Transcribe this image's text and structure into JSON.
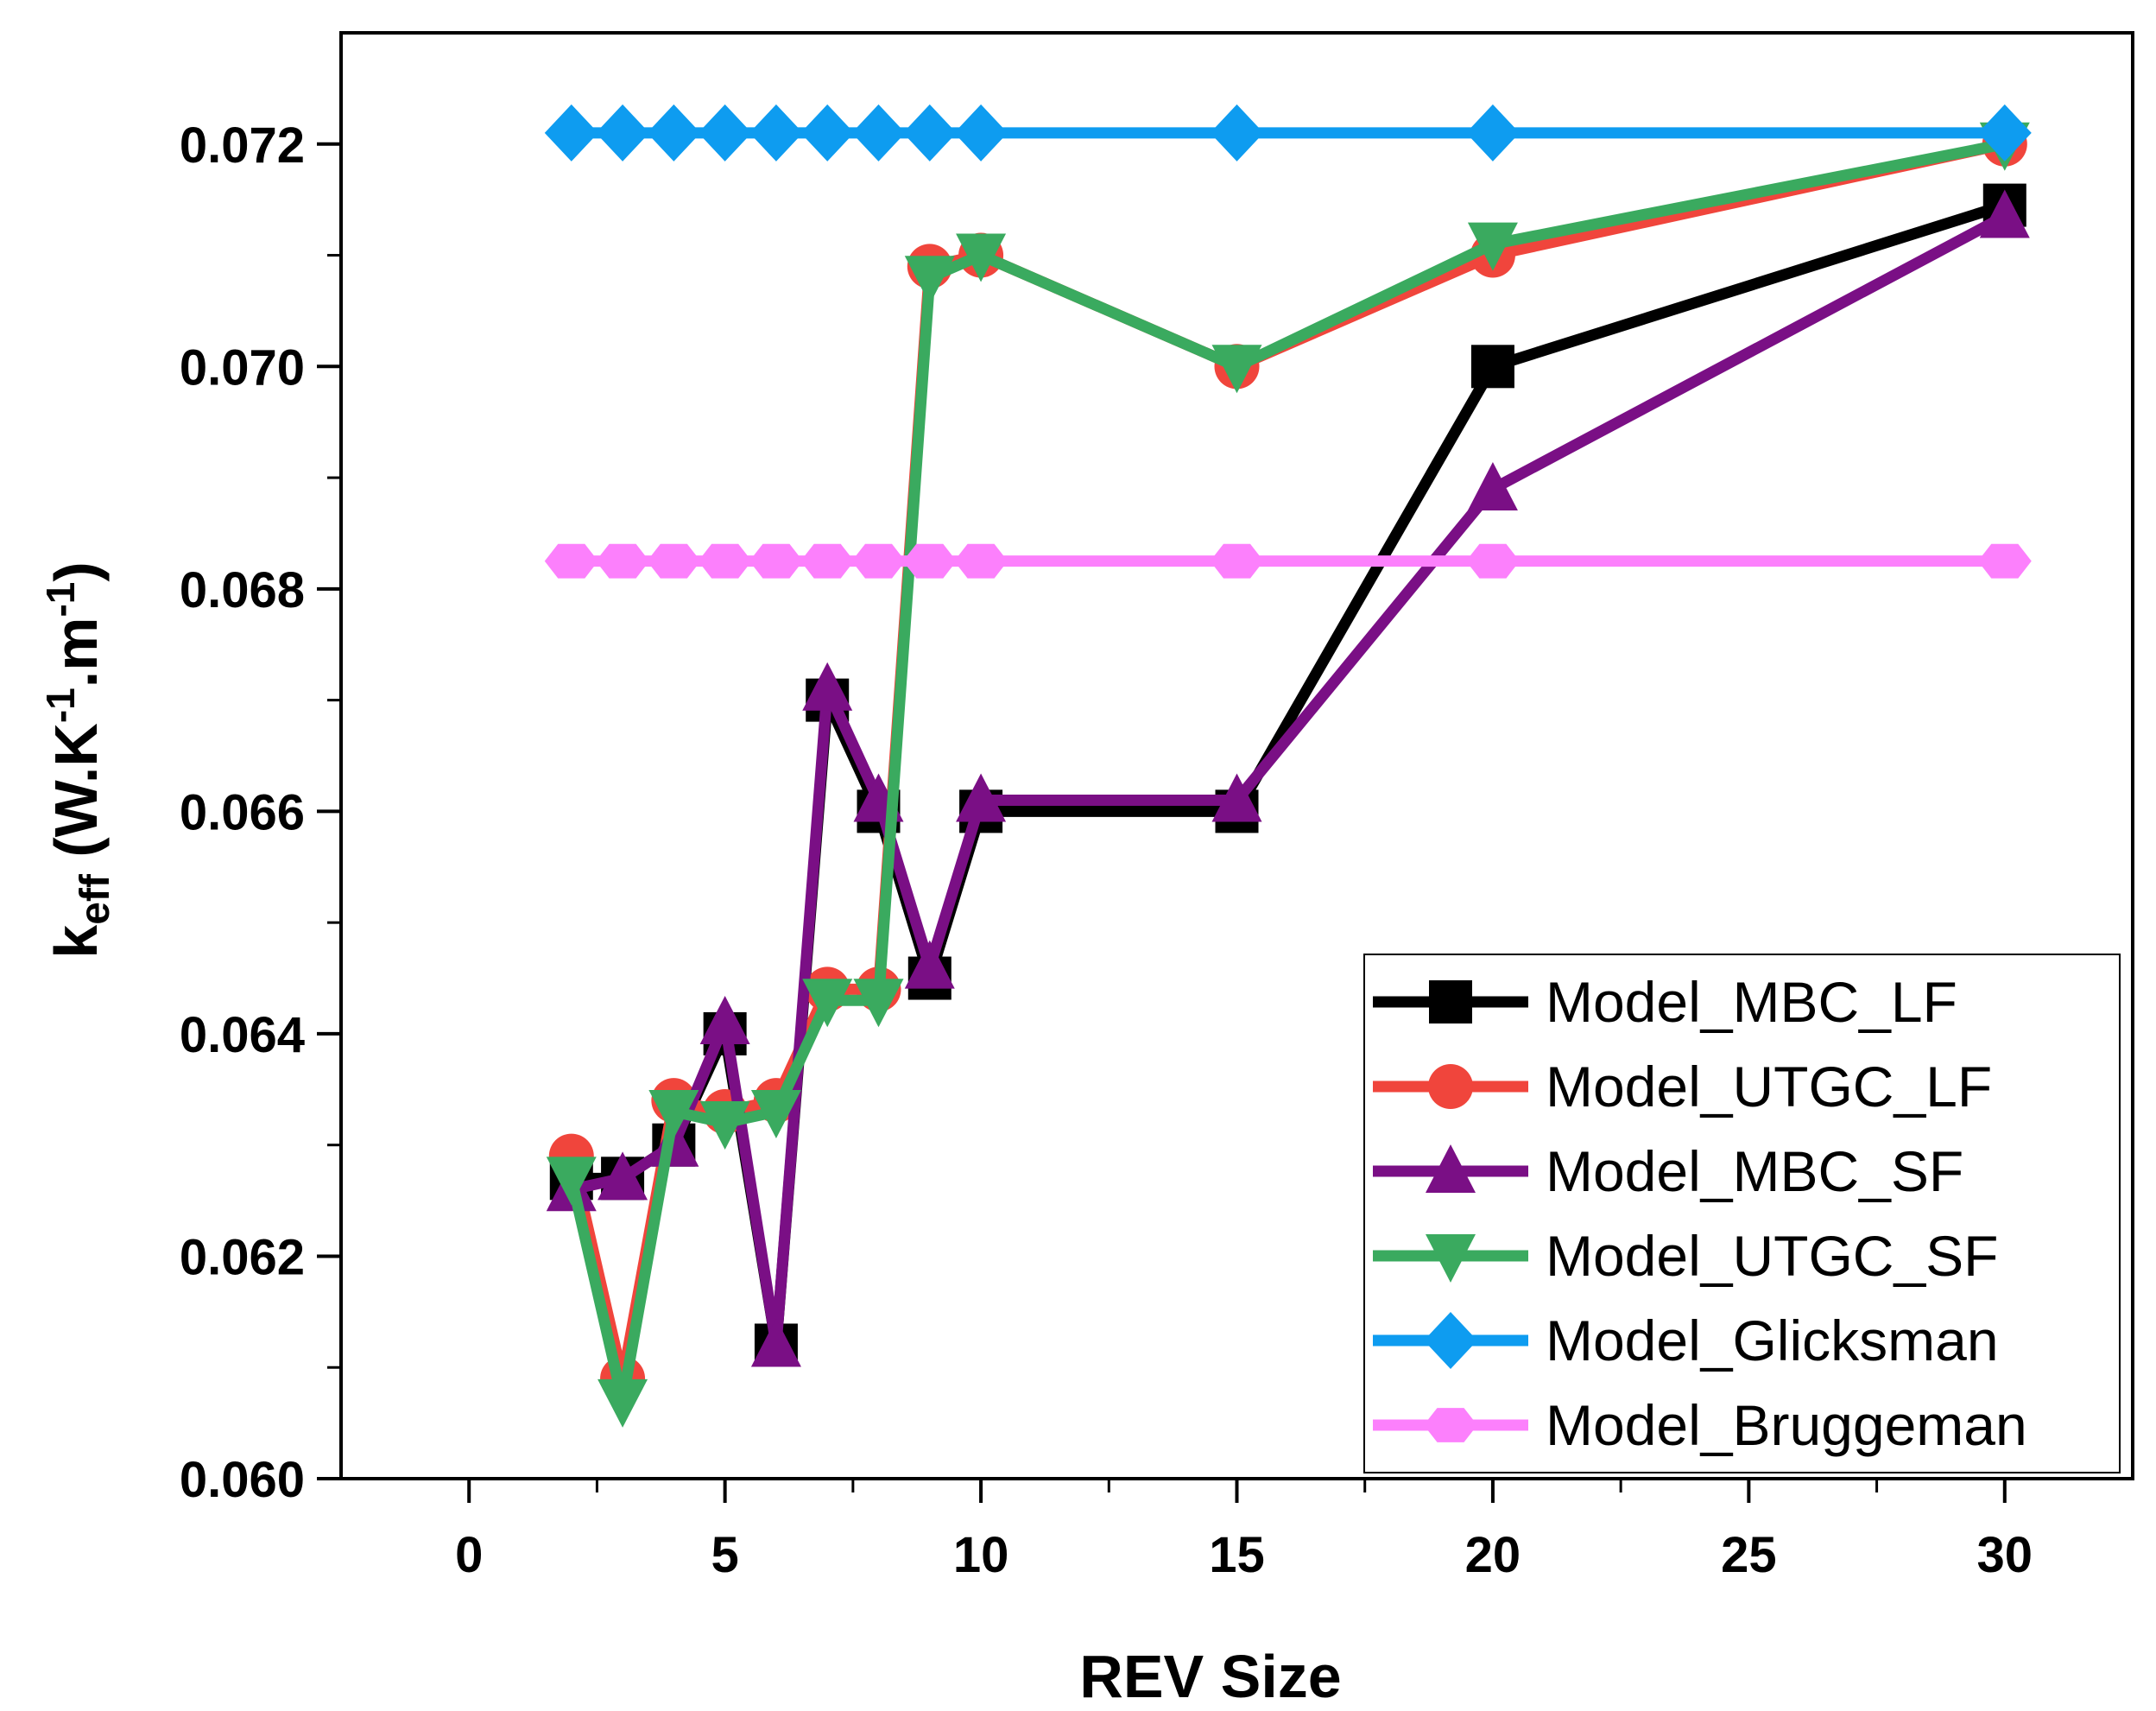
{
  "chart_data": {
    "type": "line",
    "title": "",
    "xlabel": "REV Size",
    "ylabel": {
      "main": "k",
      "sub": "eff",
      "unit_prefix": " (W.K",
      "exp1": "-1",
      "unit_mid": ".m",
      "exp2": "-1",
      "unit_suffix": ")"
    },
    "xlim": [
      -2.5,
      32.5
    ],
    "ylim": [
      0.06,
      0.073
    ],
    "xticks": [
      0,
      5,
      10,
      15,
      20,
      25,
      30
    ],
    "xtick_labels": [
      "0",
      "5",
      "10",
      "15",
      "20",
      "25",
      "30"
    ],
    "yticks": [
      0.06,
      0.062,
      0.064,
      0.066,
      0.068,
      0.07,
      0.072
    ],
    "ytick_labels": [
      "0.060",
      "0.062",
      "0.064",
      "0.066",
      "0.068",
      "0.070",
      "0.072"
    ],
    "legend_position": "bottom-right",
    "x": [
      2,
      3,
      4,
      5,
      6,
      7,
      8,
      9,
      10,
      15,
      20,
      30
    ],
    "series": [
      {
        "name": "Model_MBC_LF",
        "color": "#000000",
        "marker": "square",
        "values": [
          0.0627,
          0.0627,
          0.063,
          0.064,
          0.0612,
          0.067,
          0.066,
          0.0645,
          0.066,
          0.066,
          0.07,
          0.07145
        ]
      },
      {
        "name": "Model_UTGC_LF",
        "color": "#f0453c",
        "marker": "circle",
        "values": [
          0.0629,
          0.0609,
          0.0634,
          0.0633,
          0.0634,
          0.0644,
          0.0644,
          0.0709,
          0.071,
          0.07,
          0.071,
          0.072
        ]
      },
      {
        "name": "Model_MBC_SF",
        "color": "#7a0f85",
        "marker": "triangle-up",
        "values": [
          0.0626,
          0.0627,
          0.063,
          0.0641,
          0.0612,
          0.0671,
          0.0661,
          0.0646,
          0.0661,
          0.0661,
          0.0689,
          0.07135
        ]
      },
      {
        "name": "Model_UTGC_SF",
        "color": "#3aaa5f",
        "marker": "triangle-down",
        "values": [
          0.0627,
          0.0607,
          0.0633,
          0.0632,
          0.0633,
          0.0643,
          0.0643,
          0.0708,
          0.071,
          0.07,
          0.0711,
          0.072
        ]
      },
      {
        "name": "Model_Glicksman",
        "color": "#0e9cf0",
        "marker": "diamond",
        "values": [
          0.0721,
          0.0721,
          0.0721,
          0.0721,
          0.0721,
          0.0721,
          0.0721,
          0.0721,
          0.0721,
          0.0721,
          0.0721,
          0.0721
        ]
      },
      {
        "name": "Model_Bruggeman",
        "color": "#fc80fc",
        "marker": "hexagon",
        "values": [
          0.06825,
          0.06825,
          0.06825,
          0.06825,
          0.06825,
          0.06825,
          0.06825,
          0.06825,
          0.06825,
          0.06825,
          0.06825,
          0.06825
        ]
      }
    ]
  }
}
